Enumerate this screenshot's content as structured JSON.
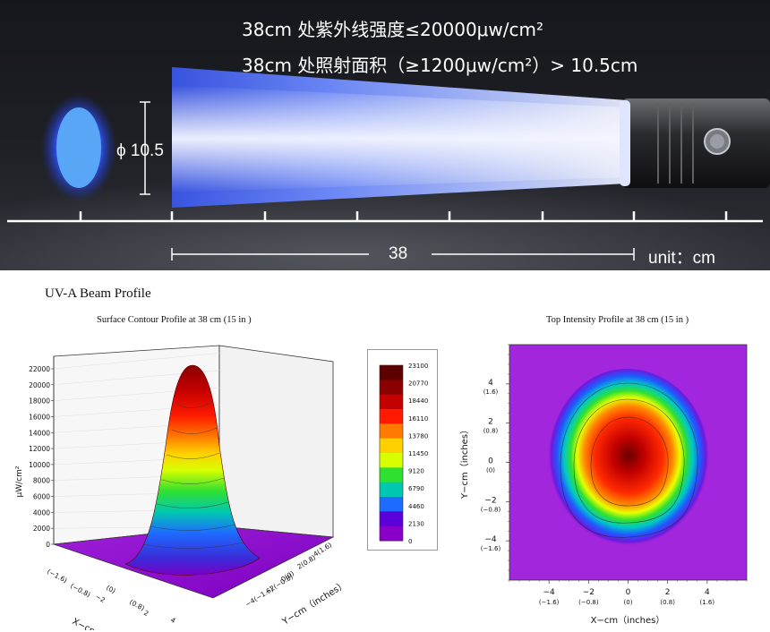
{
  "banner": {
    "spec_line1": "38cm 处紫外线强度≤20000μw/cm²",
    "spec_line2": "38cm 处照射面积（≥1200μw/cm²）> 10.5cm",
    "diameter_label": "ϕ 10.5",
    "distance_label": "38",
    "unit_label": "unit：cm",
    "colors": {
      "beam": "#8fa6ff",
      "spot": "#3f8ff0",
      "background": "#15161b"
    }
  },
  "profile_heading": "UV-A Beam Profile",
  "chart_data": [
    {
      "type": "surface",
      "title": "Surface Contour Profile at 38 cm (15 in )",
      "zlabel": "μW/cm²",
      "xlabel": "X−cm（inches）",
      "ylabel": "Y−cm（inches）",
      "z_ticks": [
        0,
        2000,
        4000,
        6000,
        8000,
        10000,
        12000,
        14000,
        16000,
        18000,
        20000,
        22000
      ],
      "x_ticks": [
        "(−1.6)",
        "(−0.8)",
        "−2",
        "(0)",
        "(0.8)",
        "2",
        "4"
      ],
      "y_ticks": [
        "4(1.6)",
        "2(0.8)",
        "0(0)",
        "−2(−0.8)",
        "−4(−1.6)"
      ],
      "peak_value": 23100,
      "colorbar": {
        "ticks": [
          "23100",
          "20770",
          "18440",
          "16110",
          "13780",
          "11450",
          "9120",
          "6790",
          "4460",
          "2130",
          "0"
        ],
        "colors": [
          "#5c0000",
          "#8b0000",
          "#c40000",
          "#ff1a00",
          "#ff7a00",
          "#ffd000",
          "#d8ff00",
          "#30e030",
          "#00c8b0",
          "#1e6bff",
          "#5a00d8",
          "#8a00c8"
        ]
      }
    },
    {
      "type": "heatmap",
      "title": "Top Intensity Profile at 38 cm (15 in )",
      "xlabel": "X−cm（inches）",
      "ylabel": "Y−cm（inches）",
      "x_ticks": [
        {
          "v": "−4",
          "i": "(−1.6)"
        },
        {
          "v": "−2",
          "i": "(−0.8)"
        },
        {
          "v": "0",
          "i": "(0)"
        },
        {
          "v": "2",
          "i": "(0.8)"
        },
        {
          "v": "4",
          "i": "(1.6)"
        }
      ],
      "y_ticks": [
        {
          "v": "4",
          "i": "(1.6)"
        },
        {
          "v": "2",
          "i": "(0.8)"
        },
        {
          "v": "0",
          "i": "(0)"
        },
        {
          "v": "−2",
          "i": "(−0.8)"
        },
        {
          "v": "−4",
          "i": "(−1.6)"
        }
      ],
      "xlim": [
        -6,
        6
      ],
      "ylim": [
        -6,
        6
      ],
      "peak_value": 23100,
      "beam_center": [
        0,
        0
      ]
    }
  ]
}
